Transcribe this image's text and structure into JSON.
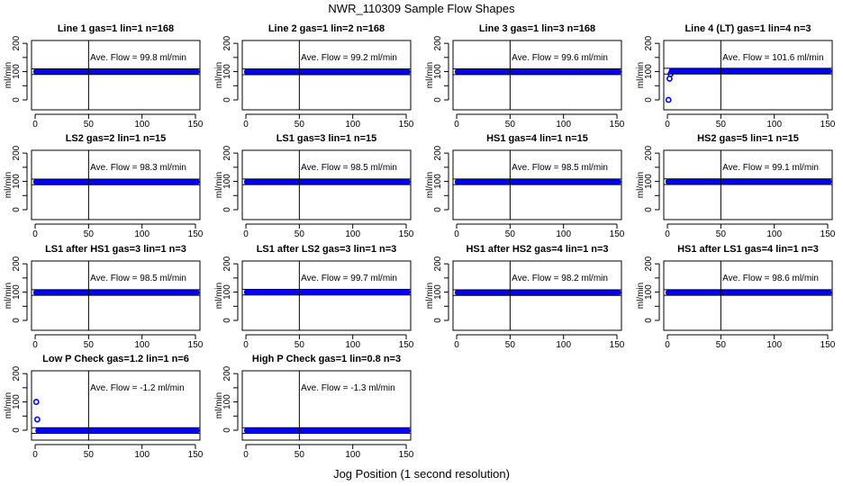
{
  "chart_data": {
    "type": "scatter",
    "title": "NWR_110309  Sample Flow Shapes",
    "xlabel": "Jog Position (1 second resolution)",
    "ylabel": "ml/min",
    "xlim": [
      -3.4,
      154.2
    ],
    "ylim": [
      -35,
      210
    ],
    "xticks": [
      0,
      50,
      100,
      150
    ],
    "yticks": [
      0,
      50,
      100,
      150,
      200
    ],
    "ytick_labels": [
      "0",
      "",
      "100",
      "",
      "200"
    ],
    "vline_x": 50,
    "band_halfwidth": 10,
    "point_color": "#0000ff",
    "panels": [
      {
        "title": "Line 1 gas=1 lin=1 n=168",
        "annotation": "Ave. Flow =  99.8  ml/min",
        "mean": 99.8,
        "x_range": [
          1,
          151
        ],
        "initial_points": []
      },
      {
        "title": "Line 2 gas=1 lin=2 n=168",
        "annotation": "Ave. Flow =  99.2  ml/min",
        "mean": 99.2,
        "x_range": [
          1,
          151
        ],
        "initial_points": []
      },
      {
        "title": "Line 3 gas=1 lin=3 n=168",
        "annotation": "Ave. Flow =  99.6  ml/min",
        "mean": 99.6,
        "x_range": [
          1,
          151
        ],
        "initial_points": []
      },
      {
        "title": "Line 4 (LT) gas=1 lin=4 n=3",
        "annotation": "Ave. Flow =  101.6  ml/min",
        "mean": 101.6,
        "x_range": [
          1,
          151
        ],
        "initial_points": [
          [
            1,
            0
          ],
          [
            2,
            75
          ],
          [
            3,
            92
          ]
        ]
      },
      {
        "title": "LS2 gas=2 lin=1 n=15",
        "annotation": "Ave. Flow =  98.3  ml/min",
        "mean": 98.3,
        "x_range": [
          1,
          151
        ],
        "initial_points": []
      },
      {
        "title": "LS1 gas=3 lin=1 n=15",
        "annotation": "Ave. Flow =  98.5  ml/min",
        "mean": 98.5,
        "x_range": [
          1,
          151
        ],
        "initial_points": []
      },
      {
        "title": "HS1 gas=4 lin=1 n=15",
        "annotation": "Ave. Flow =  98.5  ml/min",
        "mean": 98.5,
        "x_range": [
          1,
          151
        ],
        "initial_points": []
      },
      {
        "title": "HS2 gas=5 lin=1 n=15",
        "annotation": "Ave. Flow =  99.1  ml/min",
        "mean": 99.1,
        "x_range": [
          1,
          151
        ],
        "initial_points": []
      },
      {
        "title": "LS1 after HS1 gas=3 lin=1 n=3",
        "annotation": "Ave. Flow =  98.5  ml/min",
        "mean": 98.5,
        "x_range": [
          1,
          151
        ],
        "initial_points": []
      },
      {
        "title": "LS1 after LS2 gas=3 lin=1 n=3",
        "annotation": "Ave. Flow =  99.7  ml/min",
        "mean": 99.7,
        "x_range": [
          1,
          151
        ],
        "initial_points": []
      },
      {
        "title": "HS1 after HS2 gas=4 lin=1 n=3",
        "annotation": "Ave. Flow =  98.2  ml/min",
        "mean": 98.2,
        "x_range": [
          1,
          151
        ],
        "initial_points": []
      },
      {
        "title": "HS1 after LS1 gas=4 lin=1 n=3",
        "annotation": "Ave. Flow =  98.6  ml/min",
        "mean": 98.6,
        "x_range": [
          1,
          151
        ],
        "initial_points": []
      },
      {
        "title": "Low P Check gas=1.2 lin=1 n=6",
        "annotation": "Ave. Flow =  -1.2  ml/min",
        "mean": -1.2,
        "x_range": [
          1,
          151
        ],
        "initial_points": [
          [
            1,
            100
          ],
          [
            2,
            38
          ]
        ]
      },
      {
        "title": "High P Check gas=1 lin=0.8 n=3",
        "annotation": "Ave. Flow =  -1.3  ml/min",
        "mean": -1.3,
        "x_range": [
          1,
          151
        ],
        "initial_points": []
      }
    ]
  }
}
